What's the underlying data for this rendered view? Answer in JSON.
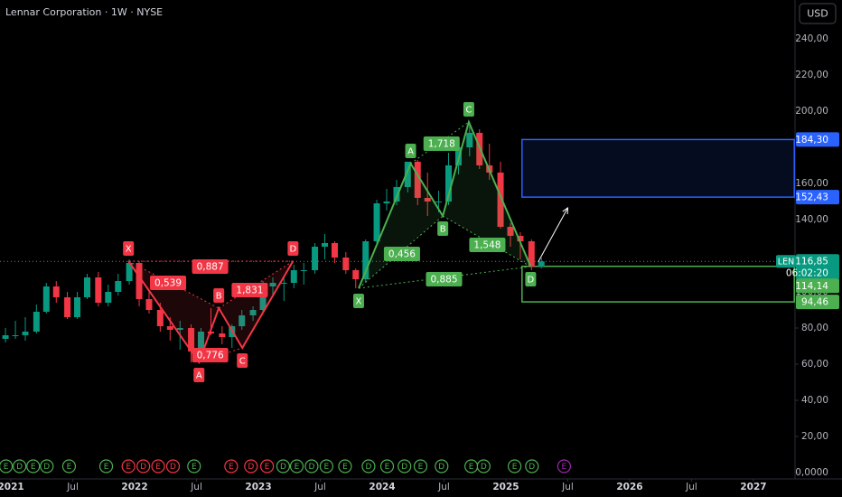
{
  "chart_data": {
    "type": "candlestick",
    "title": "Lennar Corporation · 1W · NYSE",
    "currency": "USD",
    "xlim": [
      2020.912,
      2027.336
    ],
    "ylim": [
      -3.5,
      261.5
    ],
    "xticks": [
      2021,
      {
        "value": 2021.5,
        "label": "Jul"
      },
      2022,
      {
        "value": 2022.5,
        "label": "Jul"
      },
      2023,
      {
        "value": 2023.5,
        "label": "Jul"
      },
      2024,
      {
        "value": 2024.5,
        "label": "Jul"
      },
      2025,
      {
        "value": 2025.5,
        "label": "Jul"
      },
      2026,
      {
        "value": 2026.5,
        "label": "Jul"
      },
      2027
    ],
    "yticks": [
      {
        "value": 0,
        "label": "0,0000"
      },
      {
        "value": 20,
        "label": "20,00"
      },
      {
        "value": 40,
        "label": "40,00"
      },
      {
        "value": 60,
        "label": "60,00"
      },
      {
        "value": 80,
        "label": "80,00"
      },
      {
        "value": 100,
        "label": "100,00"
      },
      {
        "value": 140,
        "label": "140,00"
      },
      {
        "value": 160,
        "label": "160,00"
      },
      {
        "value": 200,
        "label": "200,00"
      },
      {
        "value": 220,
        "label": "220,00"
      },
      {
        "value": 240,
        "label": "240,00"
      }
    ],
    "up_color": "#089981",
    "down_color": "#f23645",
    "x": [
      2020.92,
      2021.0,
      2021.08,
      2021.17,
      2021.25,
      2021.33,
      2021.42,
      2021.5,
      2021.58,
      2021.67,
      2021.75,
      2021.83,
      2021.92,
      2022.0,
      2022.08,
      2022.17,
      2022.25,
      2022.33,
      2022.42,
      2022.5,
      2022.58,
      2022.67,
      2022.75,
      2022.83,
      2022.92,
      2023.0,
      2023.08,
      2023.17,
      2023.25,
      2023.33,
      2023.42,
      2023.5,
      2023.58,
      2023.67,
      2023.75,
      2023.83,
      2023.92,
      2024.0,
      2024.08,
      2024.17,
      2024.25,
      2024.33,
      2024.42,
      2024.5,
      2024.58,
      2024.67,
      2024.75,
      2024.83,
      2024.92,
      2025.0,
      2025.08,
      2025.17,
      2025.25
    ],
    "open": [
      74,
      76,
      76,
      78,
      89,
      103,
      97,
      86,
      97,
      108,
      94,
      100,
      106,
      116,
      96,
      90,
      81,
      79,
      80,
      67,
      78,
      77,
      75,
      81,
      87,
      90,
      103,
      105,
      105,
      112,
      112,
      125,
      127,
      119,
      112,
      107,
      128,
      149,
      150,
      158,
      172,
      152,
      150,
      150,
      170,
      180,
      188,
      170,
      166,
      136,
      131,
      128,
      114
    ],
    "high": [
      80,
      84,
      86,
      93,
      105,
      106,
      100,
      100,
      110,
      111,
      104,
      110,
      118,
      117,
      101,
      94,
      86,
      84,
      82,
      80,
      91,
      81,
      82,
      90,
      92,
      106,
      108,
      108,
      115,
      116,
      127,
      132,
      128,
      122,
      113,
      129,
      151,
      157,
      162,
      172,
      173,
      166,
      156,
      177,
      185,
      194,
      190,
      182,
      172,
      138,
      133,
      129,
      119
    ],
    "low": [
      72,
      74,
      73,
      77,
      88,
      94,
      85,
      85,
      96,
      92,
      92,
      98,
      104,
      92,
      88,
      78,
      73,
      68,
      61,
      64,
      76,
      71,
      69,
      79,
      84,
      88,
      98,
      95,
      102,
      104,
      110,
      118,
      116,
      110,
      102,
      105,
      127,
      145,
      148,
      155,
      148,
      142,
      144,
      148,
      165,
      175,
      168,
      162,
      135,
      125,
      118,
      112,
      113
    ],
    "close": [
      76,
      76,
      78,
      89,
      103,
      97,
      86,
      97,
      108,
      94,
      100,
      106,
      116,
      96,
      90,
      81,
      79,
      80,
      67,
      78,
      77,
      75,
      81,
      87,
      90,
      103,
      105,
      105,
      112,
      112,
      125,
      127,
      119,
      112,
      107,
      128,
      149,
      150,
      158,
      172,
      152,
      150,
      150,
      170,
      180,
      188,
      170,
      166,
      136,
      131,
      128,
      114,
      116.85
    ],
    "patterns": [
      {
        "color": "#f23645",
        "points": [
          {
            "label": "X",
            "x": 2021.95,
            "y": 117
          },
          {
            "label": "A",
            "x": 2022.52,
            "y": 61
          },
          {
            "label": "B",
            "x": 2022.68,
            "y": 91
          },
          {
            "label": "C",
            "x": 2022.87,
            "y": 69
          },
          {
            "label": "D",
            "x": 2023.28,
            "y": 117
          }
        ],
        "ratios": [
          {
            "label": "0,539",
            "x": 2022.27,
            "y": 105
          },
          {
            "label": "0,887",
            "x": 2022.61,
            "y": 114
          },
          {
            "label": "1,831",
            "x": 2022.93,
            "y": 101
          },
          {
            "label": "0,776",
            "x": 2022.61,
            "y": 65
          }
        ]
      },
      {
        "color": "#4caf50",
        "points": [
          {
            "label": "X",
            "x": 2023.81,
            "y": 102
          },
          {
            "label": "A",
            "x": 2024.23,
            "y": 171
          },
          {
            "label": "B",
            "x": 2024.49,
            "y": 142
          },
          {
            "label": "C",
            "x": 2024.7,
            "y": 194
          },
          {
            "label": "D",
            "x": 2025.2,
            "y": 114
          }
        ],
        "ratios": [
          {
            "label": "0,456",
            "x": 2024.16,
            "y": 121
          },
          {
            "label": "1,718",
            "x": 2024.48,
            "y": 182
          },
          {
            "label": "1,548",
            "x": 2024.85,
            "y": 126
          },
          {
            "label": "0,885",
            "x": 2024.5,
            "y": 107
          }
        ]
      }
    ],
    "boxes": [
      {
        "x0": 2025.13,
        "x1": 2027.33,
        "y0": 152.43,
        "y1": 184.3,
        "color": "#2962ff"
      },
      {
        "x0": 2025.13,
        "x1": 2027.33,
        "y0": 94.46,
        "y1": 114.14,
        "color": "#4caf50"
      }
    ],
    "arrow": {
      "x0": 2025.26,
      "y0": 116.5,
      "x1": 2025.5,
      "y1": 146.5
    },
    "price_tags": [
      {
        "value": 184.3,
        "label": "184,30",
        "color": "#2962ff"
      },
      {
        "value": 152.43,
        "label": "152,43",
        "color": "#2962ff"
      },
      {
        "value": 114.14,
        "label": "114,14",
        "color": "#4caf50"
      },
      {
        "value": 94.46,
        "label": "94,46",
        "color": "#4caf50"
      }
    ],
    "last_price": {
      "symbol": "LEN",
      "value": 116.85,
      "label": "116,85",
      "countdown": "06:02:20",
      "color": "#089981"
    },
    "events": [
      {
        "label": "E",
        "x": 2020.96,
        "color": "#4caf50"
      },
      {
        "label": "D",
        "x": 2021.07,
        "color": "#4caf50"
      },
      {
        "label": "E",
        "x": 2021.18,
        "color": "#4caf50"
      },
      {
        "label": "D",
        "x": 2021.29,
        "color": "#4caf50"
      },
      {
        "label": "E",
        "x": 2021.47,
        "color": "#4caf50"
      },
      {
        "label": "E",
        "x": 2021.77,
        "color": "#4caf50"
      },
      {
        "label": "E",
        "x": 2021.95,
        "color": "#f23645"
      },
      {
        "label": "D",
        "x": 2022.07,
        "color": "#f23645"
      },
      {
        "label": "E",
        "x": 2022.19,
        "color": "#f23645"
      },
      {
        "label": "D",
        "x": 2022.31,
        "color": "#f23645"
      },
      {
        "label": "E",
        "x": 2022.48,
        "color": "#4caf50"
      },
      {
        "label": "E",
        "x": 2022.78,
        "color": "#f23645"
      },
      {
        "label": "D",
        "x": 2022.94,
        "color": "#f23645"
      },
      {
        "label": "E",
        "x": 2023.07,
        "color": "#f23645"
      },
      {
        "label": "D",
        "x": 2023.2,
        "color": "#4caf50"
      },
      {
        "label": "E",
        "x": 2023.31,
        "color": "#4caf50"
      },
      {
        "label": "D",
        "x": 2023.43,
        "color": "#4caf50"
      },
      {
        "label": "E",
        "x": 2023.55,
        "color": "#4caf50"
      },
      {
        "label": "E",
        "x": 2023.7,
        "color": "#4caf50"
      },
      {
        "label": "D",
        "x": 2023.89,
        "color": "#4caf50"
      },
      {
        "label": "E",
        "x": 2024.04,
        "color": "#4caf50"
      },
      {
        "label": "D",
        "x": 2024.18,
        "color": "#4caf50"
      },
      {
        "label": "E",
        "x": 2024.31,
        "color": "#4caf50"
      },
      {
        "label": "D",
        "x": 2024.48,
        "color": "#4caf50"
      },
      {
        "label": "E",
        "x": 2024.72,
        "color": "#4caf50"
      },
      {
        "label": "D",
        "x": 2024.82,
        "color": "#4caf50"
      },
      {
        "label": "E",
        "x": 2025.07,
        "color": "#4caf50"
      },
      {
        "label": "D",
        "x": 2025.21,
        "color": "#4caf50"
      },
      {
        "label": "E",
        "x": 2025.47,
        "color": "#9c27b0"
      }
    ]
  }
}
